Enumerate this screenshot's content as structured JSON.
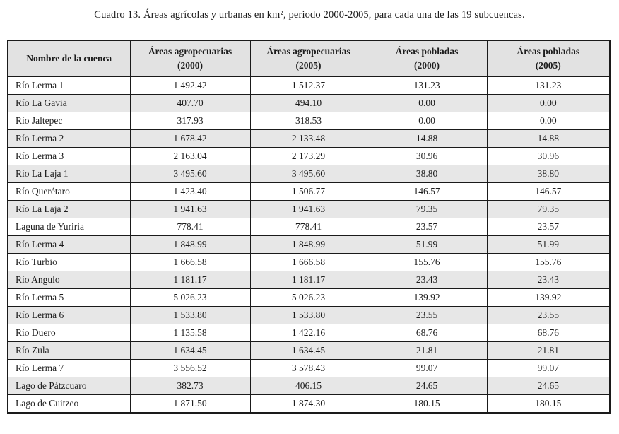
{
  "caption": "Cuadro 13. Áreas agrícolas y urbanas en km², periodo 2000-2005, para cada una de las 19 subcuencas.",
  "table": {
    "columns": [
      {
        "label": "Nombre de la cuenca",
        "sub": ""
      },
      {
        "label": "Áreas agropecuarias",
        "sub": "(2000)"
      },
      {
        "label": "Áreas agropecuarias",
        "sub": "(2005)"
      },
      {
        "label": "Áreas pobladas",
        "sub": "(2000)"
      },
      {
        "label": "Áreas pobladas",
        "sub": "(2005)"
      }
    ],
    "rows": [
      [
        "Río Lerma 1",
        "1 492.42",
        "1 512.37",
        "131.23",
        "131.23"
      ],
      [
        "Río La Gavia",
        "407.70",
        "494.10",
        "0.00",
        "0.00"
      ],
      [
        "Río Jaltepec",
        "317.93",
        "318.53",
        "0.00",
        "0.00"
      ],
      [
        "Río Lerma 2",
        "1 678.42",
        "2 133.48",
        "14.88",
        "14.88"
      ],
      [
        "Río Lerma 3",
        "2 163.04",
        "2 173.29",
        "30.96",
        "30.96"
      ],
      [
        "Río La Laja 1",
        "3 495.60",
        "3 495.60",
        "38.80",
        "38.80"
      ],
      [
        "Río Querétaro",
        "1 423.40",
        "1 506.77",
        "146.57",
        "146.57"
      ],
      [
        "Río La Laja 2",
        "1 941.63",
        "1 941.63",
        "79.35",
        "79.35"
      ],
      [
        "Laguna de Yuriria",
        "778.41",
        "778.41",
        "23.57",
        "23.57"
      ],
      [
        "Río Lerma 4",
        "1 848.99",
        "1 848.99",
        "51.99",
        "51.99"
      ],
      [
        "Río Turbio",
        "1 666.58",
        "1 666.58",
        "155.76",
        "155.76"
      ],
      [
        "Río Angulo",
        "1 181.17",
        "1 181.17",
        "23.43",
        "23.43"
      ],
      [
        "Río Lerma 5",
        "5 026.23",
        "5 026.23",
        "139.92",
        "139.92"
      ],
      [
        "Río Lerma 6",
        "1 533.80",
        "1 533.80",
        "23.55",
        "23.55"
      ],
      [
        "Río Duero",
        "1 135.58",
        "1 422.16",
        "68.76",
        "68.76"
      ],
      [
        "Río Zula",
        "1 634.45",
        "1 634.45",
        "21.81",
        "21.81"
      ],
      [
        "Río Lerma 7",
        "3 556.52",
        "3 578.43",
        "99.07",
        "99.07"
      ],
      [
        "Lago de Pátzcuaro",
        "382.73",
        "406.15",
        "24.65",
        "24.65"
      ],
      [
        "Lago de Cuitzeo",
        "1 871.50",
        "1 874.30",
        "180.15",
        "180.15"
      ]
    ]
  }
}
